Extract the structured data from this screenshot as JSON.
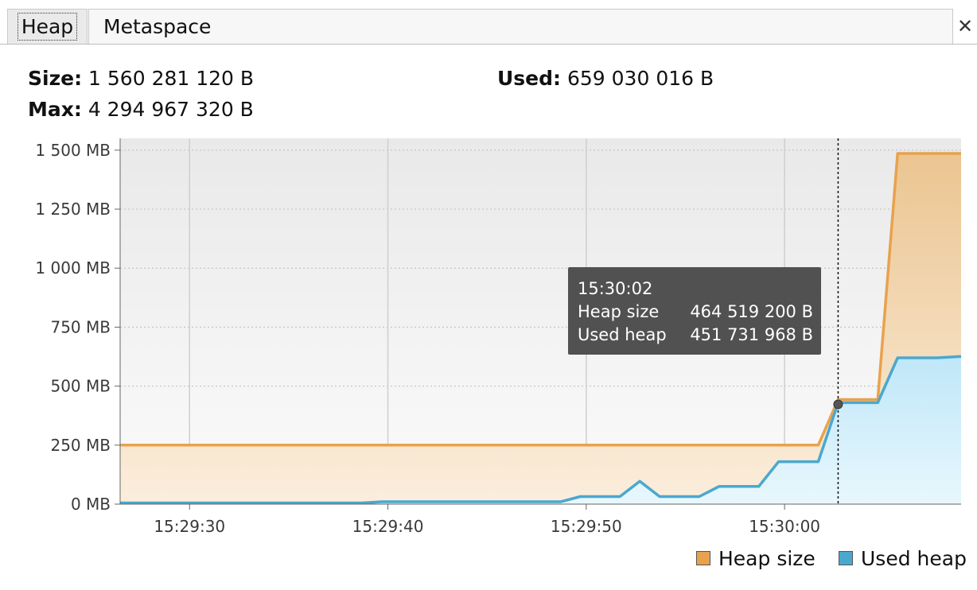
{
  "tabs": [
    {
      "label": "Heap",
      "active": true
    },
    {
      "label": "Metaspace",
      "active": false
    }
  ],
  "close_icon": "close-icon",
  "info": {
    "size_label": "Size:",
    "size_value": "1 560 281 120 B",
    "max_label": "Max:",
    "max_value": "4 294 967 320 B",
    "used_label": "Used:",
    "used_value": "659 030 016 B"
  },
  "tooltip": {
    "time": "15:30:02",
    "rows": [
      {
        "label": "Heap size",
        "value": "464 519 200 B"
      },
      {
        "label": "Used heap",
        "value": "451 731 968 B"
      }
    ]
  },
  "legend": {
    "heap_label": "Heap size",
    "used_label": "Used heap"
  },
  "colors": {
    "heap_line": "#e8a24e",
    "heap_fill": "#f4d7b0",
    "used_line": "#4aa8cf",
    "used_fill": "#cdeefa",
    "plot_bg": "#f1f1f1",
    "tooltip_bg": "#4a4a4a"
  },
  "chart_data": {
    "type": "area",
    "title": "",
    "xlabel": "",
    "ylabel": "",
    "x_unit": "seconds after 15:29:30",
    "x_ticks": [
      {
        "t": 0,
        "label": "15:29:30"
      },
      {
        "t": 10,
        "label": "15:29:40"
      },
      {
        "t": 20,
        "label": "15:29:50"
      },
      {
        "t": 30,
        "label": "15:30:00"
      }
    ],
    "y_ticks": [
      {
        "v": 0,
        "label": "0 MB"
      },
      {
        "v": 250,
        "label": "250 MB"
      },
      {
        "v": 500,
        "label": "500 MB"
      },
      {
        "v": 750,
        "label": "750 MB"
      },
      {
        "v": 1000,
        "label": "1 000 MB"
      },
      {
        "v": 1250,
        "label": "1 250 MB"
      },
      {
        "v": 1500,
        "label": "1 500 MB"
      }
    ],
    "xlim": [
      -3.5,
      38.9
    ],
    "ylim": [
      0,
      1550
    ],
    "grid": true,
    "legend_placement": "bottom-right",
    "cursor_t": 32.7,
    "series": [
      {
        "name": "Heap size",
        "points": [
          [
            -3.5,
            250
          ],
          [
            31.7,
            250
          ],
          [
            32.7,
            443
          ],
          [
            34.7,
            443
          ],
          [
            35.7,
            1486
          ],
          [
            38.9,
            1486
          ]
        ]
      },
      {
        "name": "Used heap",
        "points": [
          [
            -3.5,
            5
          ],
          [
            8.7,
            5
          ],
          [
            9.7,
            10
          ],
          [
            18.7,
            10
          ],
          [
            19.7,
            32
          ],
          [
            21.7,
            32
          ],
          [
            22.7,
            97
          ],
          [
            23.7,
            32
          ],
          [
            25.7,
            32
          ],
          [
            26.7,
            75
          ],
          [
            28.7,
            75
          ],
          [
            29.7,
            180
          ],
          [
            31.7,
            180
          ],
          [
            32.7,
            430
          ],
          [
            34.7,
            430
          ],
          [
            35.7,
            620
          ],
          [
            37.7,
            620
          ],
          [
            38.9,
            626
          ]
        ]
      }
    ]
  }
}
